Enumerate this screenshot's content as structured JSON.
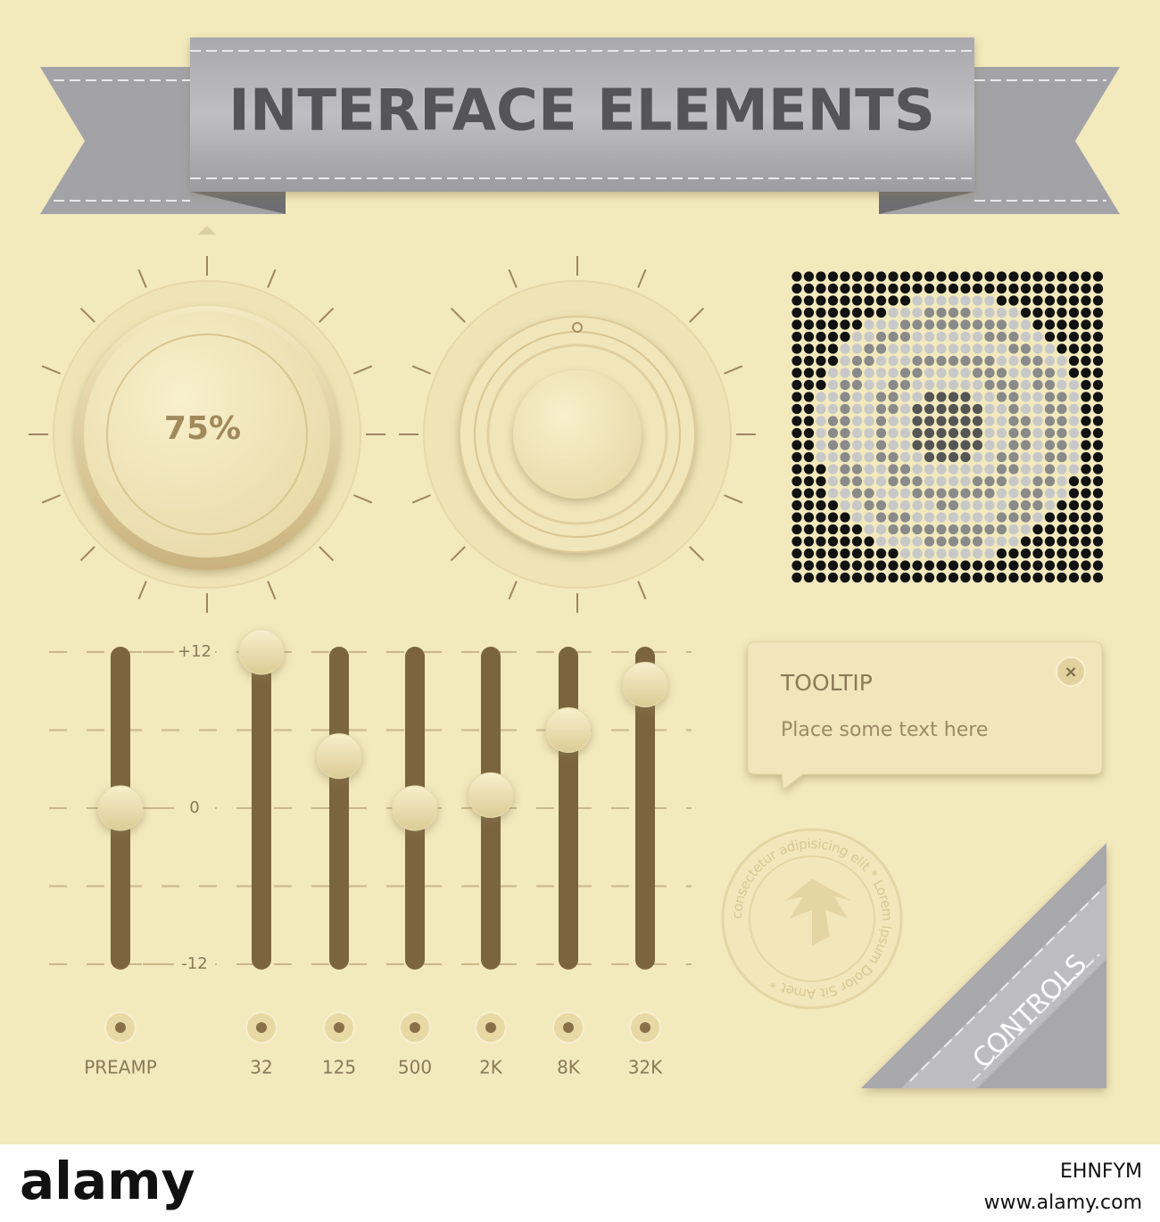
{
  "header": {
    "title": "INTERFACE ELEMENTS"
  },
  "knob": {
    "label": "75%"
  },
  "equalizer": {
    "scale": [
      {
        "value": 12,
        "label": "+12"
      },
      {
        "value": 0,
        "label": "0"
      },
      {
        "value": -12,
        "label": "-12"
      }
    ],
    "sliders": [
      {
        "label": "PREAMP",
        "value": 0
      },
      {
        "label": "32",
        "value": 12
      },
      {
        "label": "125",
        "value": 4
      },
      {
        "label": "500",
        "value": 0
      },
      {
        "label": "2K",
        "value": 1
      },
      {
        "label": "8K",
        "value": 6
      },
      {
        "label": "32K",
        "value": 9.5
      }
    ]
  },
  "tooltip": {
    "title": "TOOLTIP",
    "text": "Place some text here"
  },
  "seal": {
    "text": "consectetur adipisicing elit * Lorem Ipsum Dolor Sit Amet *"
  },
  "corner_ribbon": {
    "label": "CONTROLS"
  },
  "footer": {
    "logo": "alamy",
    "image_id": "EHNFYM",
    "url": "www.alamy.com"
  }
}
